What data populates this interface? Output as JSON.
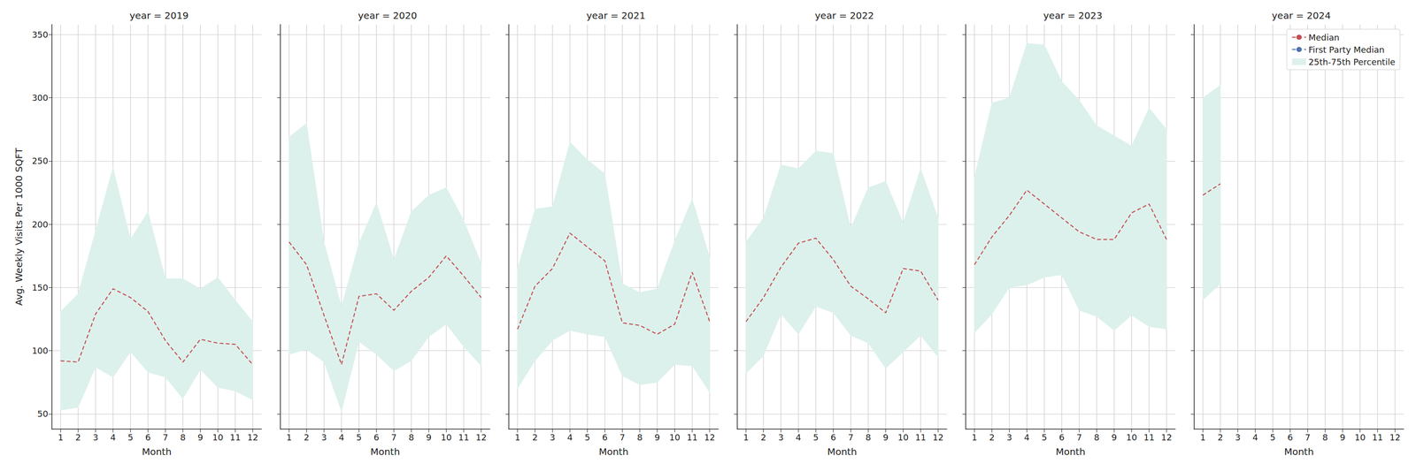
{
  "chart_data": [
    {
      "type": "line",
      "title": "year = 2019",
      "xlabel": "Month",
      "ylabel": "Avg. Weekly Visits Per 1000 SQFT",
      "x": [
        1,
        2,
        3,
        4,
        5,
        6,
        7,
        8,
        9,
        10,
        11,
        12
      ],
      "xlim": [
        0.5,
        12.5
      ],
      "xticks": [
        1,
        2,
        3,
        4,
        5,
        6,
        7,
        8,
        9,
        10,
        11,
        12
      ],
      "ylim": [
        38,
        358
      ],
      "yticks": [
        50,
        100,
        150,
        200,
        250,
        300,
        350
      ],
      "grid": true,
      "series": [
        {
          "name": "Median",
          "color": "#c44e52",
          "line_style": "dashed",
          "values": [
            92,
            91,
            129,
            149,
            142,
            131,
            108,
            91,
            109,
            106,
            105,
            89
          ]
        },
        {
          "name": "First Party Median",
          "color": "#4c72b0",
          "line_style": "dashed",
          "values": [
            null,
            null,
            null,
            null,
            null,
            null,
            null,
            null,
            null,
            null,
            null,
            null
          ]
        },
        {
          "name": "25th-75th Percentile",
          "type": "band",
          "color": "#ddf1ec",
          "lower": [
            53,
            55,
            87,
            79,
            99,
            83,
            79,
            62,
            85,
            71,
            68,
            61
          ],
          "upper": [
            131,
            145,
            195,
            245,
            188,
            210,
            157,
            157,
            149,
            158,
            140,
            123
          ]
        }
      ]
    },
    {
      "type": "line",
      "title": "year = 2020",
      "xlabel": "Month",
      "tick_labels": "x",
      "x": [
        1,
        2,
        3,
        4,
        5,
        6,
        7,
        8,
        9,
        10,
        11,
        12
      ],
      "xlim": [
        0.5,
        12.5
      ],
      "xticks": [
        1,
        2,
        3,
        4,
        5,
        6,
        7,
        8,
        9,
        10,
        11,
        12
      ],
      "ylim": [
        38,
        358
      ],
      "yticks": [
        50,
        100,
        150,
        200,
        250,
        300,
        350
      ],
      "grid": true,
      "series": [
        {
          "name": "Median",
          "color": "#c44e52",
          "line_style": "dashed",
          "values": [
            186,
            168,
            128,
            89,
            143,
            145,
            132,
            147,
            158,
            175,
            159,
            142
          ]
        },
        {
          "name": "First Party Median",
          "color": "#4c72b0",
          "line_style": "dashed",
          "values": [
            null,
            null,
            null,
            null,
            null,
            null,
            null,
            null,
            null,
            null,
            null,
            null
          ]
        },
        {
          "name": "25th-75th Percentile",
          "type": "band",
          "color": "#ddf1ec",
          "lower": [
            97,
            101,
            91,
            52,
            107,
            97,
            84,
            92,
            111,
            121,
            103,
            88
          ],
          "upper": [
            269,
            280,
            186,
            135,
            185,
            217,
            172,
            210,
            223,
            229,
            203,
            169
          ]
        }
      ]
    },
    {
      "type": "line",
      "title": "year = 2021",
      "xlabel": "Month",
      "tick_labels": "x",
      "x": [
        1,
        2,
        3,
        4,
        5,
        6,
        7,
        8,
        9,
        10,
        11,
        12
      ],
      "xlim": [
        0.5,
        12.5
      ],
      "xticks": [
        1,
        2,
        3,
        4,
        5,
        6,
        7,
        8,
        9,
        10,
        11,
        12
      ],
      "ylim": [
        38,
        358
      ],
      "yticks": [
        50,
        100,
        150,
        200,
        250,
        300,
        350
      ],
      "grid": true,
      "series": [
        {
          "name": "Median",
          "color": "#c44e52",
          "line_style": "dashed",
          "values": [
            117,
            151,
            165,
            193,
            182,
            171,
            122,
            120,
            113,
            121,
            162,
            123
          ]
        },
        {
          "name": "First Party Median",
          "color": "#4c72b0",
          "line_style": "dashed",
          "values": [
            null,
            null,
            null,
            null,
            null,
            null,
            null,
            null,
            null,
            null,
            null,
            null
          ]
        },
        {
          "name": "25th-75th Percentile",
          "type": "band",
          "color": "#ddf1ec",
          "lower": [
            70,
            92,
            108,
            116,
            113,
            111,
            80,
            73,
            75,
            89,
            88,
            67
          ],
          "upper": [
            165,
            212,
            214,
            265,
            251,
            240,
            153,
            146,
            149,
            187,
            220,
            174
          ]
        }
      ]
    },
    {
      "type": "line",
      "title": "year = 2022",
      "xlabel": "Month",
      "tick_labels": "x",
      "x": [
        1,
        2,
        3,
        4,
        5,
        6,
        7,
        8,
        9,
        10,
        11,
        12
      ],
      "xlim": [
        0.5,
        12.5
      ],
      "xticks": [
        1,
        2,
        3,
        4,
        5,
        6,
        7,
        8,
        9,
        10,
        11,
        12
      ],
      "ylim": [
        38,
        358
      ],
      "yticks": [
        50,
        100,
        150,
        200,
        250,
        300,
        350
      ],
      "grid": true,
      "series": [
        {
          "name": "Median",
          "color": "#c44e52",
          "line_style": "dashed",
          "values": [
            123,
            142,
            166,
            185,
            189,
            172,
            151,
            141,
            130,
            165,
            163,
            140
          ]
        },
        {
          "name": "First Party Median",
          "color": "#4c72b0",
          "line_style": "dashed",
          "values": [
            null,
            null,
            null,
            null,
            null,
            null,
            null,
            null,
            null,
            null,
            null,
            null
          ]
        },
        {
          "name": "25th-75th Percentile",
          "type": "band",
          "color": "#ddf1ec",
          "lower": [
            82,
            96,
            129,
            113,
            135,
            130,
            112,
            106,
            86,
            99,
            112,
            95
          ],
          "upper": [
            186,
            205,
            247,
            244,
            258,
            256,
            197,
            229,
            234,
            201,
            244,
            205
          ]
        }
      ]
    },
    {
      "type": "line",
      "title": "year = 2023",
      "xlabel": "Month",
      "tick_labels": "x",
      "x": [
        1,
        2,
        3,
        4,
        5,
        6,
        7,
        8,
        9,
        10,
        11,
        12
      ],
      "xlim": [
        0.5,
        12.5
      ],
      "xticks": [
        1,
        2,
        3,
        4,
        5,
        6,
        7,
        8,
        9,
        10,
        11,
        12
      ],
      "ylim": [
        38,
        358
      ],
      "yticks": [
        50,
        100,
        150,
        200,
        250,
        300,
        350
      ],
      "grid": true,
      "series": [
        {
          "name": "Median",
          "color": "#c44e52",
          "line_style": "dashed",
          "values": [
            168,
            190,
            207,
            227,
            216,
            205,
            194,
            188,
            188,
            209,
            216,
            188
          ]
        },
        {
          "name": "First Party Median",
          "color": "#4c72b0",
          "line_style": "dashed",
          "values": [
            null,
            null,
            null,
            null,
            null,
            null,
            null,
            null,
            null,
            null,
            null,
            null
          ]
        },
        {
          "name": "25th-75th Percentile",
          "type": "band",
          "color": "#ddf1ec",
          "lower": [
            114,
            129,
            150,
            152,
            158,
            160,
            132,
            127,
            116,
            128,
            119,
            117
          ],
          "upper": [
            237,
            296,
            300,
            343,
            342,
            313,
            298,
            278,
            270,
            262,
            292,
            275
          ]
        }
      ]
    },
    {
      "type": "line",
      "title": "year = 2024",
      "xlabel": "Month",
      "tick_labels": "x",
      "legend": "upper right",
      "x": [
        1,
        2,
        3,
        4,
        5,
        6,
        7,
        8,
        9,
        10,
        11,
        12
      ],
      "xlim": [
        0.5,
        12.5
      ],
      "xticks": [
        1,
        2,
        3,
        4,
        5,
        6,
        7,
        8,
        9,
        10,
        11,
        12
      ],
      "ylim": [
        38,
        358
      ],
      "yticks": [
        50,
        100,
        150,
        200,
        250,
        300,
        350
      ],
      "grid": true,
      "series": [
        {
          "name": "Median",
          "color": "#c44e52",
          "line_style": "dashed",
          "values": [
            223,
            232,
            null,
            null,
            null,
            null,
            null,
            null,
            null,
            null,
            null,
            null
          ]
        },
        {
          "name": "First Party Median",
          "color": "#4c72b0",
          "line_style": "dashed",
          "values": [
            null,
            null,
            null,
            null,
            null,
            null,
            null,
            null,
            null,
            null,
            null,
            null
          ]
        },
        {
          "name": "25th-75th Percentile",
          "type": "band",
          "color": "#ddf1ec",
          "lower": [
            140,
            153,
            null,
            null,
            null,
            null,
            null,
            null,
            null,
            null,
            null,
            null
          ],
          "upper": [
            300,
            310,
            null,
            null,
            null,
            null,
            null,
            null,
            null,
            null,
            null,
            null
          ]
        }
      ]
    }
  ]
}
